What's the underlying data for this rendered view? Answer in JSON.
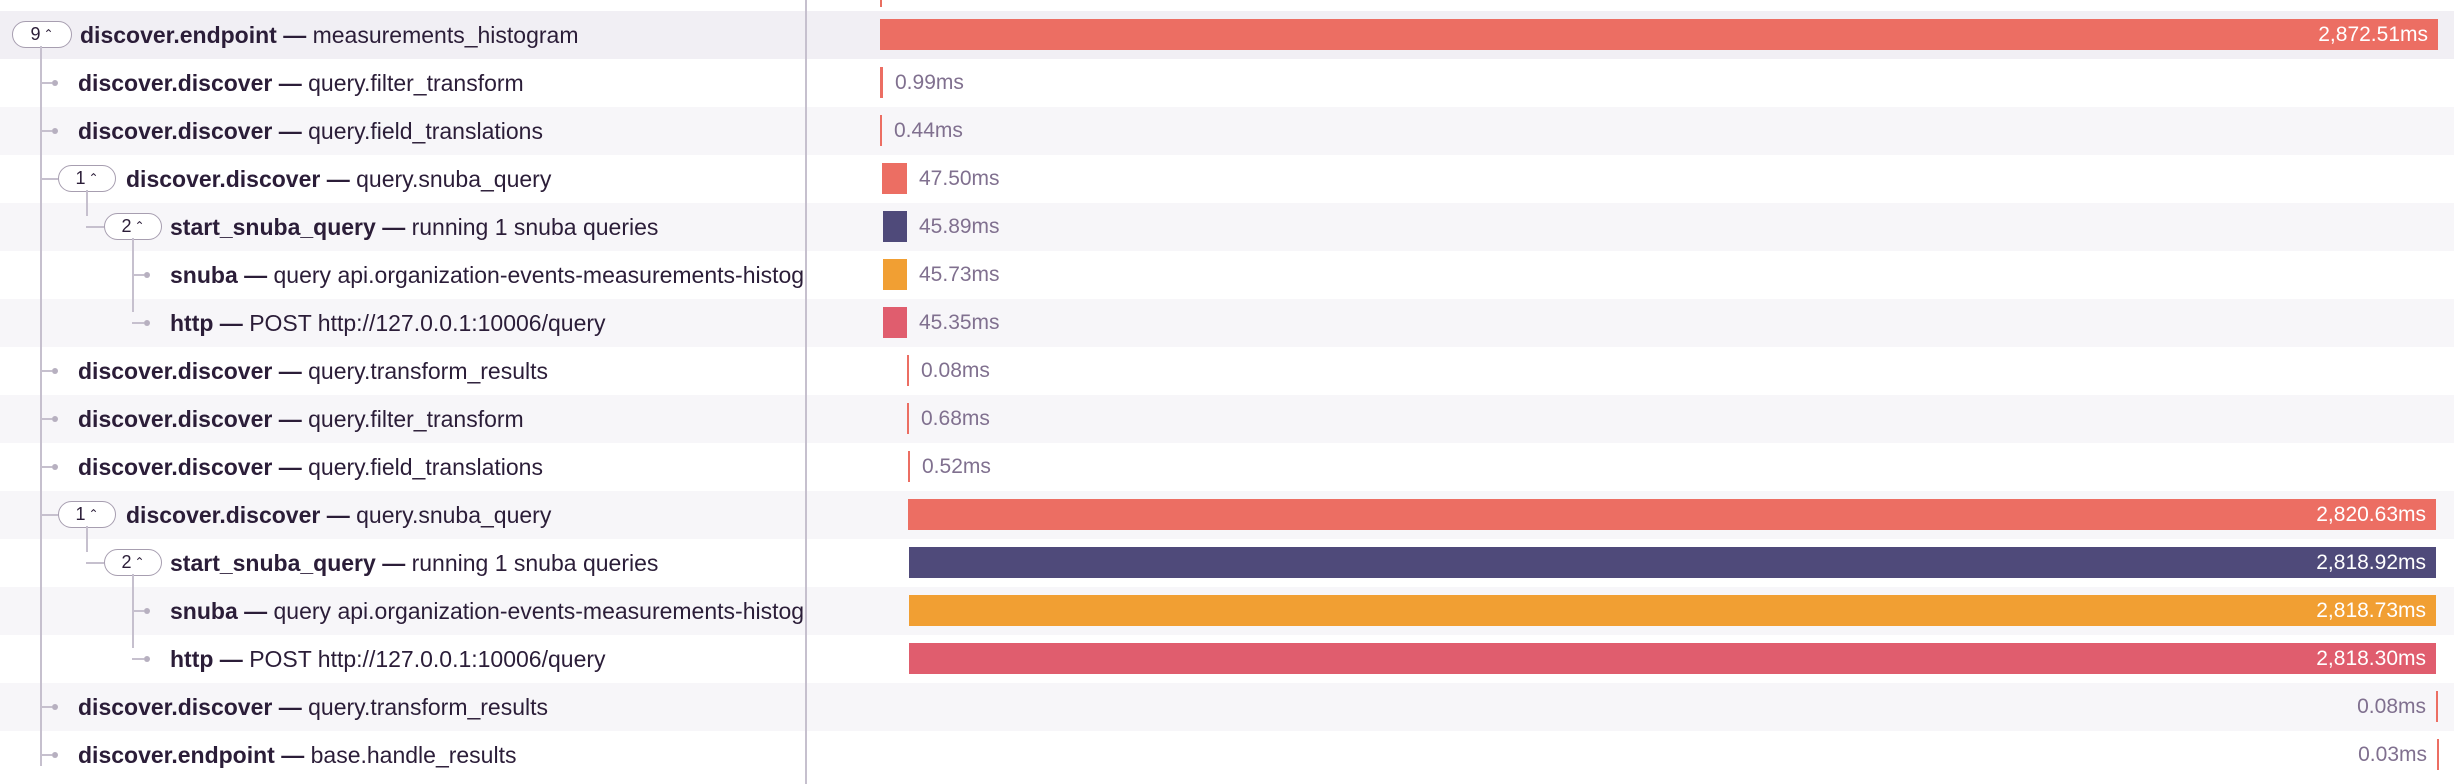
{
  "colors": {
    "endpoint": "#ec6e63",
    "start_snuba_query": "#4f4a7a",
    "snuba": "#f19f33",
    "http": "#e05d6e",
    "divider": "#c6c0ce",
    "duration_text": "#80708f"
  },
  "trace_rows": [
    {
      "op": "discover.endpoint",
      "desc": "measurements_histogram",
      "duration": "2,872.51ms",
      "children_count": "9"
    },
    {
      "op": "discover.discover",
      "desc": "query.filter_transform",
      "duration": "0.99ms"
    },
    {
      "op": "discover.discover",
      "desc": "query.field_translations",
      "duration": "0.44ms"
    },
    {
      "op": "discover.discover",
      "desc": "query.snuba_query",
      "duration": "47.50ms",
      "children_count": "1"
    },
    {
      "op": "start_snuba_query",
      "desc": "running 1 snuba queries",
      "duration": "45.89ms",
      "children_count": "2"
    },
    {
      "op": "snuba",
      "desc": "query api.organization-events-measurements-histogram",
      "duration": "45.73ms"
    },
    {
      "op": "http",
      "desc": "POST http://127.0.0.1:10006/query",
      "duration": "45.35ms"
    },
    {
      "op": "discover.discover",
      "desc": "query.transform_results",
      "duration": "0.08ms"
    },
    {
      "op": "discover.discover",
      "desc": "query.filter_transform",
      "duration": "0.68ms"
    },
    {
      "op": "discover.discover",
      "desc": "query.field_translations",
      "duration": "0.52ms"
    },
    {
      "op": "discover.discover",
      "desc": "query.snuba_query",
      "duration": "2,820.63ms",
      "children_count": "1"
    },
    {
      "op": "start_snuba_query",
      "desc": "running 1 snuba queries",
      "duration": "2,818.92ms",
      "children_count": "2"
    },
    {
      "op": "snuba",
      "desc": "query api.organization-events-measurements-histogram",
      "duration": "2,818.73ms"
    },
    {
      "op": "http",
      "desc": "POST http://127.0.0.1:10006/query",
      "duration": "2,818.30ms"
    },
    {
      "op": "discover.discover",
      "desc": "query.transform_results",
      "duration": "0.08ms"
    },
    {
      "op": "discover.endpoint",
      "desc": "base.handle_results",
      "duration": "0.03ms"
    }
  ]
}
